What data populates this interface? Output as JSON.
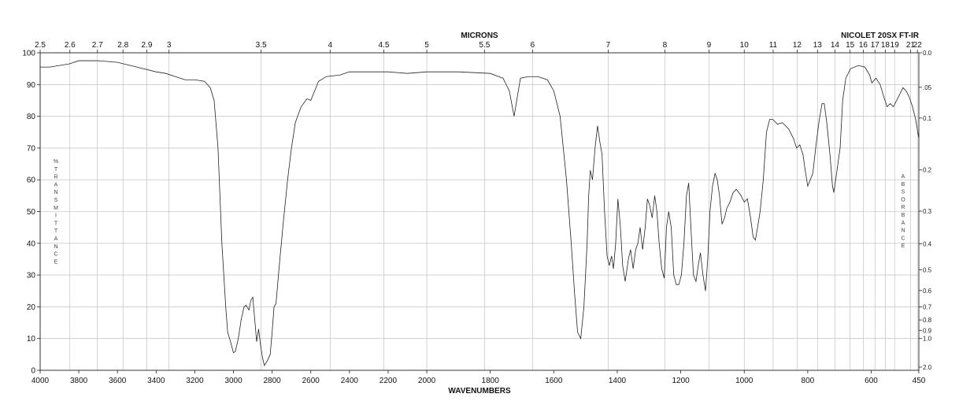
{
  "chart_data": {
    "type": "line",
    "instrument_label": "NICOLET 20SX FT-IR",
    "top_axis_title": "MICRONS",
    "bottom_axis_title": "WAVENUMBERS",
    "left_axis_label": "%TRANSMITTANCE",
    "right_axis_label": "ABSORBANCE",
    "x_range": [
      4000,
      450
    ],
    "y_range": [
      0,
      100
    ],
    "bottom_ticks": [
      4000,
      3800,
      3600,
      3400,
      3200,
      3000,
      2800,
      2600,
      2400,
      2200,
      2000,
      1800,
      1600,
      1400,
      1200,
      1000,
      800,
      600,
      450
    ],
    "top_ticks": [
      {
        "label": "2.5",
        "micron": 2.5
      },
      {
        "label": "2.6",
        "micron": 2.6
      },
      {
        "label": "2.7",
        "micron": 2.7
      },
      {
        "label": "2.8",
        "micron": 2.8
      },
      {
        "label": "2.9",
        "micron": 2.9
      },
      {
        "label": "3",
        "micron": 3.0
      },
      {
        "label": "3.5",
        "micron": 3.5
      },
      {
        "label": "4",
        "micron": 4.0
      },
      {
        "label": "4.5",
        "micron": 4.5
      },
      {
        "label": "5",
        "micron": 5.0
      },
      {
        "label": "5.5",
        "micron": 5.5
      },
      {
        "label": "6",
        "micron": 6.0
      },
      {
        "label": "7",
        "micron": 7.0
      },
      {
        "label": "8",
        "micron": 8.0
      },
      {
        "label": "9",
        "micron": 9.0
      },
      {
        "label": "10",
        "micron": 10.0
      },
      {
        "label": "11",
        "micron": 11.0
      },
      {
        "label": "12",
        "micron": 12.0
      },
      {
        "label": "13",
        "micron": 13.0
      },
      {
        "label": "14",
        "micron": 14.0
      },
      {
        "label": "15",
        "micron": 15.0
      },
      {
        "label": "16",
        "micron": 16.0
      },
      {
        "label": "17",
        "micron": 17.0
      },
      {
        "label": "18",
        "micron": 18.0
      },
      {
        "label": "19",
        "micron": 19.0
      },
      {
        "label": "21",
        "micron": 21.0
      },
      {
        "label": "22",
        "micron": 22.0
      }
    ],
    "left_ticks": [
      0,
      10,
      20,
      30,
      40,
      50,
      60,
      70,
      80,
      90,
      100
    ],
    "right_ticks": [
      {
        "label": "0.0",
        "absorbance": 0.0
      },
      {
        "label": ".05",
        "absorbance": 0.05
      },
      {
        "label": "0.1",
        "absorbance": 0.1
      },
      {
        "label": "0.2",
        "absorbance": 0.2
      },
      {
        "label": "0.3",
        "absorbance": 0.3
      },
      {
        "label": "0.4",
        "absorbance": 0.4
      },
      {
        "label": "0.5",
        "absorbance": 0.5
      },
      {
        "label": "0.6",
        "absorbance": 0.6
      },
      {
        "label": "0.7",
        "absorbance": 0.7
      },
      {
        "label": "0.8",
        "absorbance": 0.8
      },
      {
        "label": "0.9",
        "absorbance": 0.9
      },
      {
        "label": "1.0",
        "absorbance": 1.0
      },
      {
        "label": "2.0",
        "absorbance": 2.0
      }
    ],
    "grid": true,
    "series": [
      {
        "points": [
          [
            4000,
            95.5
          ],
          [
            3950,
            95.5
          ],
          [
            3900,
            96
          ],
          [
            3850,
            96.5
          ],
          [
            3800,
            97.5
          ],
          [
            3700,
            97.5
          ],
          [
            3600,
            97
          ],
          [
            3500,
            95.5
          ],
          [
            3400,
            94
          ],
          [
            3350,
            93.5
          ],
          [
            3300,
            92.5
          ],
          [
            3250,
            91.5
          ],
          [
            3200,
            91.5
          ],
          [
            3150,
            91
          ],
          [
            3120,
            89
          ],
          [
            3100,
            85
          ],
          [
            3080,
            70
          ],
          [
            3060,
            40
          ],
          [
            3040,
            20
          ],
          [
            3030,
            12
          ],
          [
            3015,
            9
          ],
          [
            3000,
            5.5
          ],
          [
            2990,
            6
          ],
          [
            2975,
            10
          ],
          [
            2960,
            16
          ],
          [
            2945,
            20
          ],
          [
            2935,
            20.5
          ],
          [
            2920,
            19
          ],
          [
            2910,
            22
          ],
          [
            2900,
            23
          ],
          [
            2890,
            16
          ],
          [
            2880,
            9
          ],
          [
            2870,
            13
          ],
          [
            2860,
            8
          ],
          [
            2850,
            4
          ],
          [
            2840,
            1.5
          ],
          [
            2825,
            3
          ],
          [
            2810,
            5
          ],
          [
            2800,
            12
          ],
          [
            2790,
            20
          ],
          [
            2780,
            21
          ],
          [
            2760,
            35
          ],
          [
            2740,
            48
          ],
          [
            2720,
            60
          ],
          [
            2700,
            70
          ],
          [
            2680,
            78
          ],
          [
            2650,
            83
          ],
          [
            2620,
            85.5
          ],
          [
            2600,
            85
          ],
          [
            2580,
            88
          ],
          [
            2560,
            91
          ],
          [
            2520,
            92.5
          ],
          [
            2450,
            93
          ],
          [
            2400,
            94
          ],
          [
            2300,
            94
          ],
          [
            2200,
            94
          ],
          [
            2100,
            93.5
          ],
          [
            2000,
            94
          ],
          [
            1900,
            94
          ],
          [
            1800,
            93.5
          ],
          [
            1760,
            92
          ],
          [
            1740,
            88
          ],
          [
            1725,
            80
          ],
          [
            1715,
            86
          ],
          [
            1705,
            92
          ],
          [
            1680,
            92.5
          ],
          [
            1650,
            92.5
          ],
          [
            1620,
            91.5
          ],
          [
            1600,
            88
          ],
          [
            1580,
            80
          ],
          [
            1560,
            60
          ],
          [
            1545,
            40
          ],
          [
            1535,
            25
          ],
          [
            1525,
            12
          ],
          [
            1515,
            10
          ],
          [
            1505,
            20
          ],
          [
            1495,
            40
          ],
          [
            1490,
            55
          ],
          [
            1485,
            63
          ],
          [
            1478,
            60
          ],
          [
            1470,
            70
          ],
          [
            1462,
            77
          ],
          [
            1455,
            72
          ],
          [
            1448,
            68
          ],
          [
            1440,
            50
          ],
          [
            1432,
            36
          ],
          [
            1425,
            33
          ],
          [
            1418,
            36
          ],
          [
            1412,
            32
          ],
          [
            1405,
            40
          ],
          [
            1398,
            54
          ],
          [
            1390,
            45
          ],
          [
            1383,
            33
          ],
          [
            1375,
            28
          ],
          [
            1365,
            35
          ],
          [
            1358,
            38
          ],
          [
            1350,
            32
          ],
          [
            1342,
            38
          ],
          [
            1335,
            40
          ],
          [
            1328,
            45
          ],
          [
            1320,
            38
          ],
          [
            1312,
            45
          ],
          [
            1305,
            54
          ],
          [
            1298,
            52
          ],
          [
            1290,
            48
          ],
          [
            1282,
            55
          ],
          [
            1275,
            50
          ],
          [
            1268,
            40
          ],
          [
            1260,
            32
          ],
          [
            1252,
            29
          ],
          [
            1245,
            45
          ],
          [
            1238,
            50
          ],
          [
            1230,
            45
          ],
          [
            1222,
            30
          ],
          [
            1214,
            27
          ],
          [
            1206,
            27
          ],
          [
            1198,
            30
          ],
          [
            1190,
            40
          ],
          [
            1182,
            55
          ],
          [
            1175,
            59
          ],
          [
            1168,
            45
          ],
          [
            1160,
            30
          ],
          [
            1152,
            28
          ],
          [
            1145,
            33
          ],
          [
            1138,
            37
          ],
          [
            1130,
            30
          ],
          [
            1122,
            25
          ],
          [
            1115,
            35
          ],
          [
            1108,
            50
          ],
          [
            1100,
            58
          ],
          [
            1092,
            62
          ],
          [
            1085,
            60
          ],
          [
            1078,
            55
          ],
          [
            1070,
            46
          ],
          [
            1062,
            48
          ],
          [
            1055,
            51
          ],
          [
            1045,
            53
          ],
          [
            1035,
            56
          ],
          [
            1025,
            57
          ],
          [
            1010,
            55
          ],
          [
            1000,
            53
          ],
          [
            990,
            54
          ],
          [
            980,
            48
          ],
          [
            972,
            42
          ],
          [
            965,
            41
          ],
          [
            958,
            45
          ],
          [
            950,
            50
          ],
          [
            940,
            60
          ],
          [
            930,
            75
          ],
          [
            920,
            79
          ],
          [
            910,
            79
          ],
          [
            895,
            77.5
          ],
          [
            880,
            78
          ],
          [
            860,
            76
          ],
          [
            845,
            73
          ],
          [
            835,
            70
          ],
          [
            825,
            71
          ],
          [
            815,
            68
          ],
          [
            808,
            63
          ],
          [
            800,
            58
          ],
          [
            792,
            60
          ],
          [
            784,
            62
          ],
          [
            775,
            70
          ],
          [
            765,
            78
          ],
          [
            755,
            84
          ],
          [
            748,
            84
          ],
          [
            740,
            78
          ],
          [
            730,
            68
          ],
          [
            722,
            58
          ],
          [
            718,
            56
          ],
          [
            712,
            60
          ],
          [
            705,
            65
          ],
          [
            698,
            70
          ],
          [
            690,
            85
          ],
          [
            680,
            92
          ],
          [
            665,
            95
          ],
          [
            640,
            96
          ],
          [
            620,
            95.5
          ],
          [
            605,
            93
          ],
          [
            598,
            90.5
          ],
          [
            585,
            92
          ],
          [
            572,
            90
          ],
          [
            560,
            86
          ],
          [
            550,
            83
          ],
          [
            540,
            84
          ],
          [
            530,
            83
          ],
          [
            520,
            85
          ],
          [
            510,
            87
          ],
          [
            500,
            89
          ],
          [
            490,
            88
          ],
          [
            480,
            86
          ],
          [
            470,
            83
          ],
          [
            460,
            79
          ],
          [
            450,
            73
          ]
        ]
      }
    ]
  }
}
